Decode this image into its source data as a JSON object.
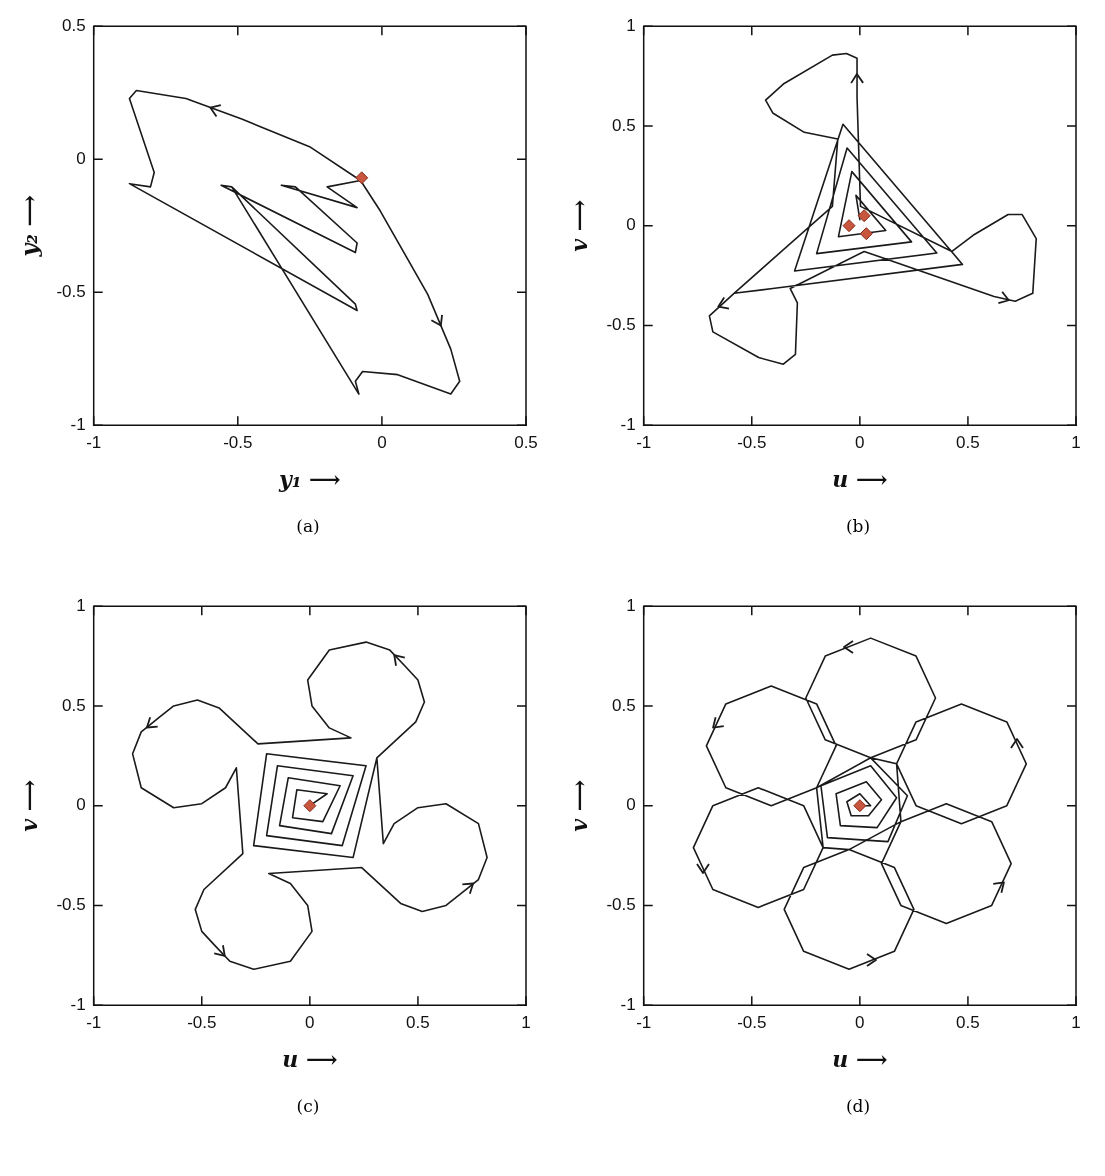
{
  "chart_data": [
    {
      "type": "line",
      "xlabel": "y₁ ⟶",
      "ylabel": "y₂ ⟶",
      "annotations": [
        "(a)"
      ],
      "xlim": [
        -1,
        0.5
      ],
      "ylim": [
        -1,
        0.5
      ],
      "xticks": [
        -1,
        -0.5,
        0,
        0.5
      ],
      "yticks": [
        -1,
        -0.5,
        0,
        0.5
      ],
      "legend": false,
      "series": [
        {
          "type": "line",
          "color": "#1a1a1a",
          "marker": "none",
          "x": [
            -0.074,
            -0.19,
            -0.086,
            -0.349,
            -0.3,
            -0.086,
            -0.092,
            -0.558,
            -0.521,
            -0.092,
            -0.086,
            -0.876,
            -0.803,
            -0.79,
            -0.876,
            -0.852,
            -0.68,
            -0.484,
            -0.251,
            -0.074,
            -0.006,
            0.159,
            0.239,
            0.27,
            0.239,
            0.055,
            -0.067,
            -0.092,
            -0.08,
            -0.521
          ],
          "values": [
            -0.08,
            -0.104,
            -0.182,
            -0.098,
            -0.104,
            -0.315,
            -0.351,
            -0.098,
            -0.104,
            -0.545,
            -0.569,
            -0.092,
            -0.104,
            -0.05,
            0.228,
            0.258,
            0.228,
            0.15,
            0.047,
            -0.08,
            -0.194,
            -0.508,
            -0.714,
            -0.835,
            -0.883,
            -0.81,
            -0.798,
            -0.835,
            -0.883,
            -0.104
          ]
        },
        {
          "type": "scatter",
          "color": "#c8553d",
          "marker": "diamond",
          "x": [
            -0.07
          ],
          "values": [
            -0.07
          ]
        }
      ]
    },
    {
      "type": "line",
      "xlabel": "u ⟶",
      "ylabel": "v ⟶",
      "annotations": [
        "(b)"
      ],
      "xlim": [
        -1,
        1
      ],
      "ylim": [
        -1,
        1
      ],
      "xticks": [
        -1,
        -0.5,
        0,
        0.5,
        1
      ],
      "yticks": [
        -1,
        -0.5,
        0,
        0.5,
        1
      ],
      "legend": false,
      "series": [
        {
          "type": "line",
          "color": "#1a1a1a",
          "marker": "none",
          "x": [
            0.0,
            -0.018,
            0.12,
            -0.099,
            -0.037,
            0.239,
            -0.2,
            -0.059,
            0.356,
            -0.302,
            -0.078,
            0.475,
            -0.403,
            -0.582,
            -0.696,
            -0.68,
            -0.468,
            -0.354,
            -0.298,
            -0.289,
            -0.322,
            0.02,
            0.621,
            0.719,
            0.8,
            0.816,
            0.751,
            0.686,
            0.524,
            0.426,
            0.003,
            -0.013,
            -0.013,
            -0.062,
            -0.127,
            -0.354,
            -0.436,
            -0.403,
            -0.257,
            -0.102,
            -0.127,
            -0.582
          ],
          "values": [
            0.03,
            0.152,
            -0.024,
            -0.055,
            0.271,
            -0.081,
            -0.14,
            0.389,
            -0.137,
            -0.227,
            0.508,
            -0.194,
            -0.315,
            -0.339,
            -0.452,
            -0.532,
            -0.661,
            -0.694,
            -0.645,
            -0.387,
            -0.315,
            -0.129,
            -0.355,
            -0.379,
            -0.339,
            -0.065,
            0.056,
            0.056,
            -0.048,
            -0.129,
            0.097,
            0.645,
            0.839,
            0.863,
            0.855,
            0.71,
            0.629,
            0.565,
            0.468,
            0.435,
            0.097,
            -0.339
          ]
        },
        {
          "type": "scatter",
          "color": "#c8553d",
          "marker": "diamond",
          "x": [
            0.02,
            -0.05,
            0.03
          ],
          "values": [
            0.05,
            0.0,
            -0.04
          ]
        }
      ]
    },
    {
      "type": "line",
      "xlabel": "u ⟶",
      "ylabel": "v ⟶",
      "annotations": [
        "(c)"
      ],
      "xlim": [
        -1,
        1
      ],
      "ylim": [
        -1,
        1
      ],
      "xticks": [
        -1,
        -0.5,
        0,
        0.5,
        1
      ],
      "yticks": [
        -1,
        -0.5,
        0,
        0.5,
        1
      ],
      "legend": false,
      "series": [
        {
          "type": "line",
          "color": "#1a1a1a",
          "marker": "none",
          "x": [
            0,
            0.08,
            -0.06,
            -0.08,
            0.06,
            0.14,
            -0.1,
            -0.14,
            0.1,
            0.2,
            -0.15,
            -0.2,
            0.15,
            0.26,
            -0.2,
            -0.26,
            0.2,
            0.31,
            0.49,
            0.53,
            0.5,
            0.44,
            0.37,
            0.26,
            0.09,
            -0.01,
            0.01,
            0.09,
            0.19,
            -0.24,
            -0.42,
            -0.52,
            -0.63,
            -0.7,
            -0.78,
            -0.82,
            -0.78,
            -0.63,
            -0.5,
            -0.39,
            -0.34,
            -0.31,
            -0.49,
            -0.53,
            -0.5,
            -0.44,
            -0.37,
            -0.26,
            -0.09,
            0.01,
            -0.01,
            -0.09,
            -0.19,
            0.24,
            0.42,
            0.52,
            0.63,
            0.7,
            0.78,
            0.82,
            0.78,
            0.63,
            0.5,
            0.39,
            0.34,
            0.31
          ],
          "values": [
            0,
            0.06,
            0.08,
            -0.06,
            -0.08,
            0.1,
            0.14,
            -0.1,
            -0.14,
            0.15,
            0.2,
            -0.15,
            -0.2,
            0.2,
            0.26,
            -0.2,
            -0.26,
            0.24,
            0.42,
            0.52,
            0.63,
            0.7,
            0.78,
            0.82,
            0.78,
            0.63,
            0.5,
            0.39,
            0.34,
            0.31,
            0.49,
            0.53,
            0.5,
            0.44,
            0.37,
            0.26,
            0.09,
            -0.01,
            0.01,
            0.09,
            0.19,
            -0.24,
            -0.42,
            -0.52,
            -0.63,
            -0.7,
            -0.78,
            -0.82,
            -0.78,
            -0.63,
            -0.5,
            -0.39,
            -0.34,
            -0.31,
            -0.49,
            -0.53,
            -0.5,
            -0.44,
            -0.37,
            -0.26,
            -0.09,
            0.01,
            -0.01,
            -0.09,
            -0.19,
            0.24
          ]
        },
        {
          "type": "scatter",
          "color": "#c8553d",
          "marker": "diamond",
          "x": [
            0
          ],
          "values": [
            0
          ]
        }
      ]
    },
    {
      "type": "line",
      "xlabel": "u ⟶",
      "ylabel": "v ⟶",
      "annotations": [
        "(d)"
      ],
      "xlim": [
        -1,
        1
      ],
      "ylim": [
        -1,
        1
      ],
      "xticks": [
        -1,
        -0.5,
        0,
        0.5,
        1
      ],
      "yticks": [
        -1,
        -0.5,
        0,
        0.5,
        1
      ],
      "legend": false,
      "series": [
        {
          "type": "line",
          "color": "#1a1a1a",
          "marker": "none",
          "x": [
            0,
            0.05,
            0,
            -0.06,
            -0.04,
            0.04,
            0.1,
            0.03,
            -0.11,
            -0.09,
            0.08,
            0.17,
            0.05,
            -0.18,
            -0.15,
            0.13,
            0.22,
            0.05,
            0.26,
            0.35,
            0.26,
            0.05,
            -0.16,
            -0.25,
            -0.16,
            0.05,
            -0.2,
            -0.11,
            -0.2,
            -0.41,
            -0.62,
            -0.71,
            -0.62,
            -0.41,
            -0.2,
            -0.17,
            -0.26,
            -0.47,
            -0.68,
            -0.77,
            -0.68,
            -0.47,
            -0.26,
            -0.17,
            -0.05,
            -0.26,
            -0.35,
            -0.26,
            -0.05,
            0.16,
            0.25,
            0.16,
            -0.05,
            0.19,
            0.1,
            0.19,
            0.4,
            0.61,
            0.7,
            0.61,
            0.4,
            0.19,
            0.17,
            0.26,
            0.47,
            0.68,
            0.77,
            0.68,
            0.47,
            0.26,
            0.17,
            0.05
          ],
          "values": [
            0,
            0,
            0.06,
            0.02,
            -0.05,
            -0.05,
            0.03,
            0.12,
            0.06,
            -0.1,
            -0.11,
            0.04,
            0.2,
            0.1,
            -0.16,
            -0.18,
            0.05,
            0.24,
            0.33,
            0.54,
            0.75,
            0.84,
            0.75,
            0.54,
            0.33,
            0.24,
            0.09,
            0.3,
            0.51,
            0.6,
            0.51,
            0.3,
            0.09,
            0,
            0.09,
            -0.21,
            0,
            0.09,
            0,
            -0.21,
            -0.42,
            -0.51,
            -0.42,
            -0.21,
            -0.22,
            -0.31,
            -0.52,
            -0.73,
            -0.82,
            -0.73,
            -0.52,
            -0.31,
            -0.22,
            -0.08,
            -0.29,
            -0.5,
            -0.59,
            -0.5,
            -0.29,
            -0.08,
            0.01,
            -0.08,
            0.21,
            0,
            -0.09,
            0,
            0.21,
            0.42,
            0.51,
            0.42,
            0.21,
            0.24
          ]
        },
        {
          "type": "scatter",
          "color": "#c8553d",
          "marker": "diamond",
          "x": [
            0
          ],
          "values": [
            0
          ]
        }
      ]
    }
  ]
}
